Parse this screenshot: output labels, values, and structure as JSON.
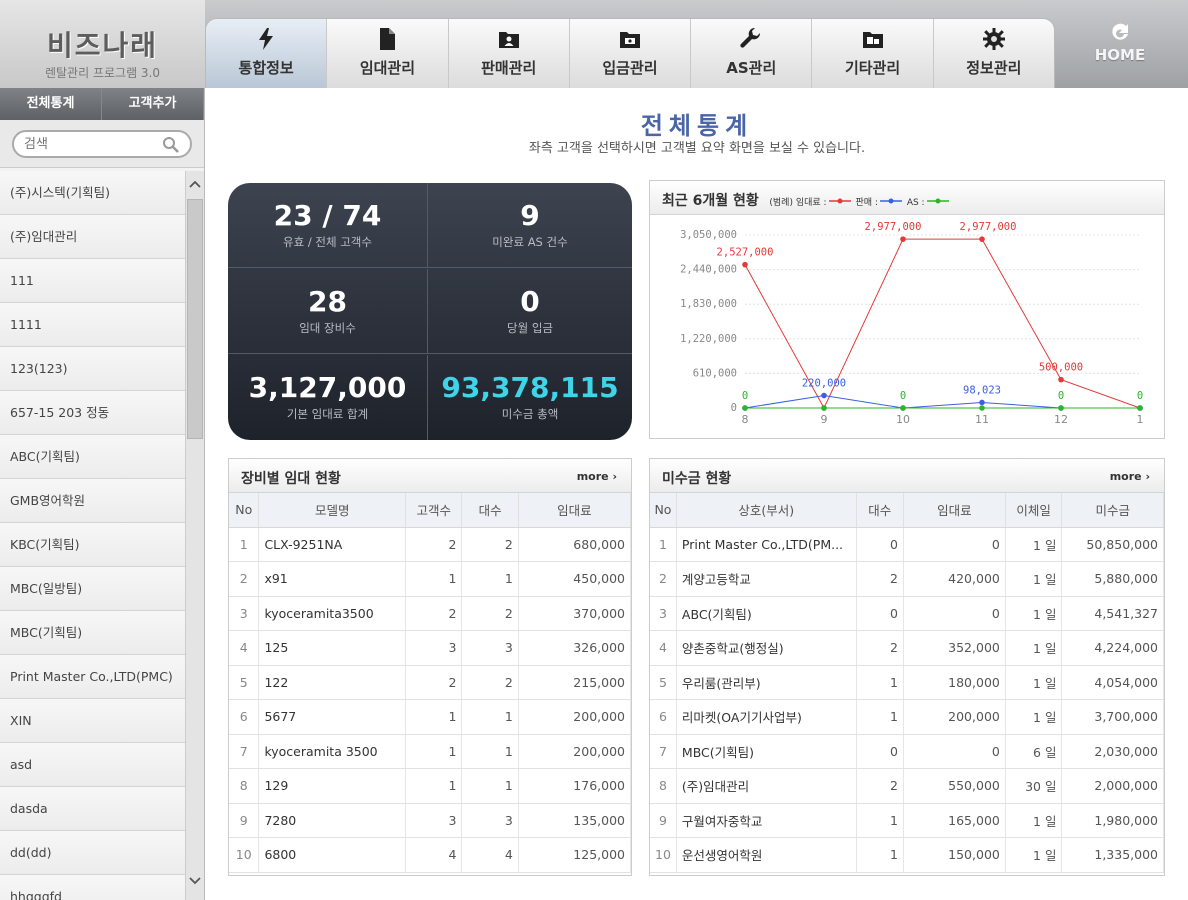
{
  "logo": {
    "title": "비즈나래",
    "subtitle": "렌탈관리 프로그램 3.0"
  },
  "nav": {
    "tabs": [
      {
        "label": "통합정보",
        "icon": "lightning-icon",
        "active": true
      },
      {
        "label": "임대관리",
        "icon": "document-icon"
      },
      {
        "label": "판매관리",
        "icon": "folder-user-icon"
      },
      {
        "label": "입금관리",
        "icon": "folder-money-icon"
      },
      {
        "label": "AS관리",
        "icon": "wrench-icon"
      },
      {
        "label": "기타관리",
        "icon": "folder-box-icon"
      },
      {
        "label": "정보관리",
        "icon": "gear-icon"
      }
    ],
    "home_label": "HOME"
  },
  "sidebar": {
    "btn_all_stats": "전체통계",
    "btn_add_customer": "고객추가",
    "search_placeholder": "검색",
    "customers": [
      "(주)시스텍(기획팀)",
      "(주)임대관리",
      "111",
      "1111",
      "123(123)",
      "657-15 203 정동",
      "ABC(기획팀)",
      "GMB영어학원",
      "KBC(기획팀)",
      "MBC(일방팀)",
      "MBC(기획팀)",
      "Print Master Co.,LTD(PMC)",
      "XIN",
      "asd",
      "dasda",
      "dd(dd)",
      "hhgggfd"
    ]
  },
  "page": {
    "title": "전체통계",
    "subtitle": "좌측 고객을 선택하시면 고객별 요약 화면을 보실 수 있습니다."
  },
  "summary": {
    "cust_value": "23 / 74",
    "cust_label": "유효 / 전체 고객수",
    "as_value": "9",
    "as_label": "미완료 AS 건수",
    "equip_value": "28",
    "equip_label": "임대 장비수",
    "deposit_value": "0",
    "deposit_label": "당월 입금",
    "rent_value": "3,127,000",
    "rent_label": "기본 임대료 합계",
    "unpaid_value": "93,378,115",
    "unpaid_label": "미수금 총액"
  },
  "chart_panel": {
    "title": "최근 6개월 현황",
    "legend_prefix": "(범례)",
    "legend_rent": "임대료 :",
    "legend_sale": "판매 :",
    "legend_as": "AS :"
  },
  "chart_data": {
    "type": "line",
    "x": [
      "8",
      "9",
      "10",
      "11",
      "12",
      "1"
    ],
    "ylim": [
      0,
      3050000
    ],
    "yticks": [
      "0",
      "610,000",
      "1,220,000",
      "1,830,000",
      "2,440,000",
      "3,050,000"
    ],
    "ytick_values": [
      0,
      610000,
      1220000,
      1830000,
      2440000,
      3050000
    ],
    "series": [
      {
        "name": "임대료",
        "color": "#e33a3a",
        "values": [
          2527000,
          0,
          2977000,
          2977000,
          500000,
          0
        ],
        "labels": [
          "2,527,000",
          "",
          "2,977,000",
          "2,977,000",
          "500,000",
          ""
        ]
      },
      {
        "name": "판매",
        "color": "#3a5fe3",
        "values": [
          0,
          220000,
          0,
          98023,
          0,
          0
        ],
        "labels": [
          "",
          "220,000",
          "",
          "98,023",
          "",
          ""
        ]
      },
      {
        "name": "AS",
        "color": "#2ab52a",
        "values": [
          0,
          0,
          0,
          0,
          0,
          0
        ],
        "labels": [
          "0",
          "",
          "0",
          "",
          "0",
          "0"
        ]
      }
    ]
  },
  "equip_panel": {
    "title": "장비별 임대 현황",
    "more": "more",
    "headers": [
      "No",
      "모델명",
      "고객수",
      "대수",
      "임대료"
    ],
    "rows": [
      [
        "1",
        "CLX-9251NA",
        "2",
        "2",
        "680,000"
      ],
      [
        "2",
        "x91",
        "1",
        "1",
        "450,000"
      ],
      [
        "3",
        "kyoceramita3500",
        "2",
        "2",
        "370,000"
      ],
      [
        "4",
        "125",
        "3",
        "3",
        "326,000"
      ],
      [
        "5",
        "122",
        "2",
        "2",
        "215,000"
      ],
      [
        "6",
        "5677",
        "1",
        "1",
        "200,000"
      ],
      [
        "7",
        "kyoceramita 3500",
        "1",
        "1",
        "200,000"
      ],
      [
        "8",
        "129",
        "1",
        "1",
        "176,000"
      ],
      [
        "9",
        "7280",
        "3",
        "3",
        "135,000"
      ],
      [
        "10",
        "6800",
        "4",
        "4",
        "125,000"
      ]
    ]
  },
  "ar_panel": {
    "title": "미수금 현황",
    "more": "more",
    "headers": [
      "No",
      "상호(부서)",
      "대수",
      "임대료",
      "이체일",
      "미수금"
    ],
    "rows": [
      [
        "1",
        "Print Master Co.,LTD(PM...",
        "0",
        "0",
        "1 일",
        "50,850,000"
      ],
      [
        "2",
        "계양고등학교",
        "2",
        "420,000",
        "1 일",
        "5,880,000"
      ],
      [
        "3",
        "ABC(기획팀)",
        "0",
        "0",
        "1 일",
        "4,541,327"
      ],
      [
        "4",
        "양촌중학교(행정실)",
        "2",
        "352,000",
        "1 일",
        "4,224,000"
      ],
      [
        "5",
        "우리룸(관리부)",
        "1",
        "180,000",
        "1 일",
        "4,054,000"
      ],
      [
        "6",
        "리마켓(OA기기사업부)",
        "1",
        "200,000",
        "1 일",
        "3,700,000"
      ],
      [
        "7",
        "MBC(기획팀)",
        "0",
        "0",
        "6 일",
        "2,030,000"
      ],
      [
        "8",
        "(주)임대관리",
        "2",
        "550,000",
        "30 일",
        "2,000,000"
      ],
      [
        "9",
        "구월여자중학교",
        "1",
        "165,000",
        "1 일",
        "1,980,000"
      ],
      [
        "10",
        "운선생영어학원",
        "1",
        "150,000",
        "1 일",
        "1,335,000"
      ]
    ]
  }
}
